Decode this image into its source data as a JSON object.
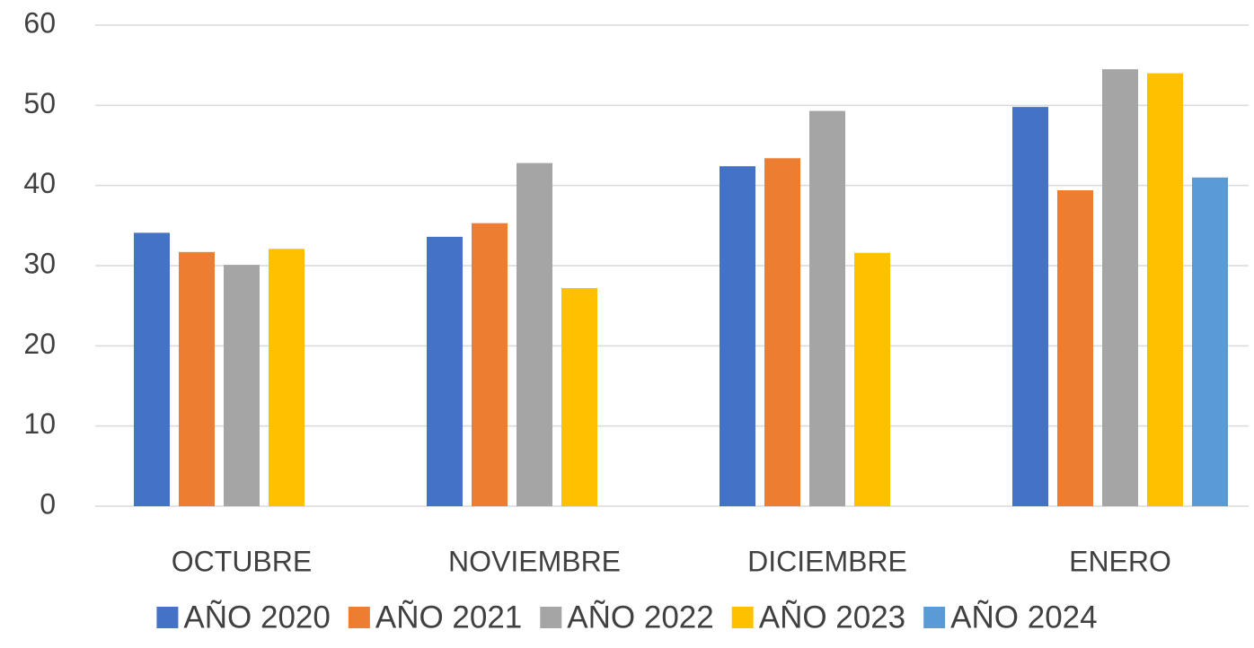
{
  "chart_data": {
    "type": "bar",
    "categories": [
      "OCTUBRE",
      "NOVIEMBRE",
      "DICIEMBRE",
      "ENERO"
    ],
    "series": [
      {
        "name": "AÑO 2020",
        "color": "#4472c4",
        "values": [
          34.1,
          33.6,
          42.4,
          49.8
        ]
      },
      {
        "name": "AÑO 2021",
        "color": "#ed7d31",
        "values": [
          31.7,
          35.3,
          43.4,
          39.4
        ]
      },
      {
        "name": "AÑO 2022",
        "color": "#a5a5a5",
        "values": [
          30.1,
          42.8,
          49.3,
          54.5
        ]
      },
      {
        "name": "AÑO 2023",
        "color": "#ffc000",
        "values": [
          32.1,
          27.2,
          31.6,
          54.0
        ]
      },
      {
        "name": "AÑO 2024",
        "color": "#5b9bd5",
        "values": [
          null,
          null,
          null,
          41.0
        ]
      }
    ],
    "ylim": [
      0,
      60
    ],
    "yticks": [
      0,
      10,
      20,
      30,
      40,
      50,
      60
    ],
    "grid": true,
    "legend": "bottom"
  }
}
